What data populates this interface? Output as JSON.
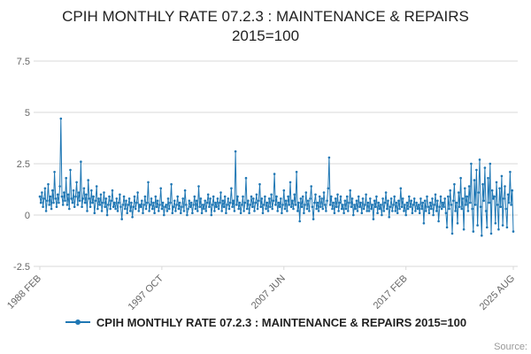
{
  "title": {
    "line1": "CPIH MONTHLY RATE 07.2.3 : MAINTENANCE & REPAIRS",
    "line2": "2015=100"
  },
  "legend": {
    "label": "CPIH MONTHLY RATE 07.2.3 : MAINTENANCE & REPAIRS 2015=100"
  },
  "source": "Source:",
  "colors": {
    "line": "#1f77b4",
    "grid": "#d9d9d9",
    "axis_text": "#666666",
    "title_text": "#222222"
  },
  "chart_data": {
    "type": "line",
    "title": "CPIH MONTHLY RATE 07.2.3 : MAINTENANCE & REPAIRS 2015=100",
    "frequency": "monthly",
    "x_start": "1988 FEB",
    "x_end": "2025 AUG",
    "x_tick_labels": [
      "1988 FEB",
      "1997 OCT",
      "2007 JUN",
      "2017 FEB",
      "2025 AUG"
    ],
    "x_tick_indices": [
      0,
      116,
      232,
      348,
      450
    ],
    "ylim": [
      -2.5,
      7.5
    ],
    "y_ticks": [
      7.5,
      5,
      2.5,
      0,
      -2.5
    ],
    "grid": "horizontal",
    "legend_position": "bottom",
    "marker": "dot",
    "values": [
      0.9,
      0.6,
      1.1,
      0.4,
      0.8,
      1.3,
      0.2,
      0.7,
      1.5,
      0.5,
      0.9,
      0.3,
      1.2,
      0.6,
      2.1,
      0.8,
      0.4,
      1.0,
      0.6,
      1.4,
      4.7,
      0.9,
      0.5,
      1.1,
      0.7,
      1.8,
      0.5,
      1.0,
      0.3,
      2.2,
      0.8,
      0.6,
      1.2,
      0.4,
      0.9,
      1.6,
      0.5,
      1.1,
      0.7,
      2.6,
      0.4,
      0.8,
      1.3,
      0.6,
      1.0,
      0.2,
      1.7,
      0.8,
      0.4,
      1.2,
      0.6,
      0.9,
      0.1,
      0.7,
      1.4,
      0.3,
      0.8,
      0.5,
      1.0,
      0.2,
      0.6,
      1.1,
      0.4,
      0.8,
      0.0,
      0.5,
      0.9,
      0.3,
      0.7,
      1.2,
      0.4,
      0.6,
      0.3,
      0.8,
      0.2,
      0.6,
      1.0,
      0.4,
      -0.2,
      0.5,
      0.9,
      0.3,
      0.7,
      0.1,
      0.5,
      0.8,
      0.2,
      0.6,
      -0.1,
      0.4,
      0.9,
      0.3,
      0.6,
      1.1,
      0.2,
      0.5,
      0.4,
      0.7,
      0.1,
      0.5,
      0.9,
      0.3,
      0.6,
      1.6,
      0.2,
      0.5,
      0.8,
      0.3,
      0.6,
      0.1,
      0.9,
      0.4,
      0.7,
      0.2,
      0.5,
      1.3,
      0.3,
      0.6,
      0.0,
      0.4,
      0.5,
      0.2,
      0.8,
      0.3,
      0.6,
      1.5,
      0.1,
      0.4,
      0.7,
      0.2,
      0.5,
      0.9,
      0.3,
      0.6,
      0.1,
      0.4,
      0.8,
      0.2,
      1.2,
      0.5,
      0.0,
      0.3,
      0.7,
      0.4,
      0.6,
      0.1,
      0.5,
      0.9,
      0.3,
      0.7,
      0.2,
      1.4,
      0.4,
      0.8,
      0.1,
      0.5,
      0.3,
      0.7,
      0.2,
      0.6,
      1.0,
      0.4,
      0.8,
      0.0,
      0.5,
      0.9,
      0.2,
      0.6,
      0.4,
      0.8,
      0.3,
      0.6,
      1.1,
      0.2,
      0.7,
      0.4,
      0.9,
      0.1,
      0.5,
      0.8,
      0.3,
      0.6,
      1.3,
      0.4,
      0.7,
      0.2,
      3.1,
      0.5,
      0.9,
      0.3,
      0.6,
      0.1,
      0.5,
      0.9,
      0.2,
      0.6,
      1.8,
      0.3,
      0.7,
      0.1,
      0.5,
      0.9,
      0.4,
      0.8,
      0.2,
      0.6,
      1.0,
      0.3,
      0.7,
      1.5,
      0.4,
      0.8,
      0.1,
      0.5,
      0.9,
      0.3,
      0.6,
      0.2,
      0.8,
      0.4,
      1.0,
      0.3,
      0.7,
      2.0,
      0.5,
      0.9,
      0.2,
      0.6,
      0.4,
      0.8,
      0.1,
      0.5,
      1.2,
      0.3,
      0.7,
      0.2,
      0.9,
      0.5,
      1.6,
      0.4,
      0.7,
      0.3,
      1.0,
      0.5,
      2.1,
      0.2,
      0.6,
      -0.3,
      0.8,
      0.4,
      0.9,
      0.1,
      0.5,
      1.1,
      0.3,
      0.7,
      0.2,
      0.8,
      1.4,
      0.4,
      -0.2,
      0.6,
      1.0,
      0.3,
      0.6,
      0.2,
      0.9,
      0.4,
      0.8,
      0.3,
      1.1,
      0.5,
      0.2,
      0.7,
      1.3,
      2.8,
      0.5,
      0.9,
      0.3,
      0.6,
      0.1,
      0.8,
      0.4,
      1.0,
      0.2,
      0.6,
      0.9,
      0.3,
      0.5,
      0.1,
      0.7,
      0.3,
      0.9,
      0.2,
      0.6,
      1.2,
      0.4,
      0.8,
      0.0,
      0.5,
      0.3,
      0.7,
      0.2,
      0.9,
      0.4,
      0.6,
      0.1,
      0.8,
      0.3,
      0.5,
      1.0,
      0.2,
      0.6,
      0.2,
      0.8,
      0.3,
      0.5,
      -0.2,
      0.7,
      0.4,
      0.9,
      0.1,
      0.6,
      0.3,
      0.5,
      0.0,
      0.8,
      0.2,
      0.6,
      1.1,
      0.3,
      0.7,
      -0.1,
      0.4,
      0.8,
      0.2,
      0.5,
      0.9,
      0.2,
      0.6,
      0.1,
      0.7,
      0.3,
      1.3,
      0.4,
      0.8,
      0.2,
      0.5,
      0.0,
      0.6,
      0.3,
      0.9,
      0.4,
      0.7,
      0.1,
      0.5,
      0.8,
      0.2,
      0.6,
      0.3,
      0.5,
      0.1,
      0.8,
      0.3,
      0.6,
      -0.4,
      0.7,
      0.2,
      0.9,
      0.4,
      0.1,
      0.6,
      0.3,
      0.8,
      0.0,
      0.5,
      1.0,
      0.2,
      0.7,
      -0.3,
      0.4,
      0.9,
      0.3,
      0.6,
      0.4,
      0.8,
      0.1,
      -0.6,
      0.9,
      0.3,
      1.2,
      0.5,
      -0.9,
      0.7,
      1.5,
      0.2,
      0.6,
      -0.4,
      1.1,
      0.4,
      1.8,
      0.3,
      0.8,
      -0.7,
      1.3,
      0.5,
      0.9,
      0.2,
      1.4,
      0.6,
      2.5,
      0.3,
      -0.8,
      1.7,
      0.5,
      2.2,
      -0.5,
      1.1,
      2.7,
      0.4,
      -1.0,
      1.5,
      0.7,
      2.3,
      0.2,
      -0.6,
      1.8,
      0.6,
      2.5,
      -0.9,
      1.2,
      0.8,
      0.9,
      -0.4,
      1.6,
      0.5,
      -0.7,
      1.3,
      0.4,
      1.9,
      -0.5,
      0.8,
      1.4,
      0.3,
      -0.6,
      1.0,
      0.6,
      2.1,
      0.5,
      1.2,
      -0.8
    ]
  }
}
